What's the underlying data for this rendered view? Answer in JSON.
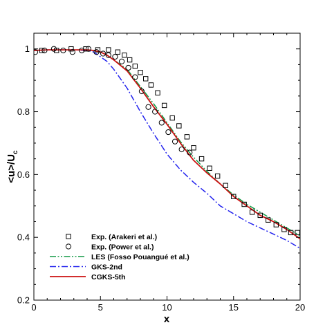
{
  "chart_data": {
    "type": "line",
    "xlabel": "x",
    "ylabel": "<u>/U",
    "ylabel_subscript": "c",
    "xlim": [
      0,
      20
    ],
    "ylim": [
      0.2,
      1.05
    ],
    "xticks": [
      0,
      5,
      10,
      15,
      20
    ],
    "yticks": [
      0.2,
      0.4,
      0.6,
      0.8,
      1.0
    ],
    "xtick_labels": [
      "0",
      "5",
      "10",
      "15",
      "20"
    ],
    "ytick_labels": [
      "0.2",
      "0.4",
      "0.6",
      "0.8",
      "1"
    ],
    "grid": false,
    "legend_position": "bottom-left",
    "series": [
      {
        "name": "Exp. (Arakeri et al.)",
        "kind": "marker",
        "marker": "square",
        "color": "#000000",
        "x": [
          0.6,
          1.7,
          2.8,
          3.9,
          4.8,
          5.6,
          6.3,
          6.8,
          7.2,
          7.6,
          8.0,
          8.4,
          8.8,
          9.3,
          9.8,
          10.4,
          10.9,
          11.5,
          12.0,
          12.6,
          13.2,
          13.8,
          14.4,
          15.0,
          15.8,
          16.4,
          17.0,
          17.6,
          18.2,
          18.8,
          19.3,
          19.8
        ],
        "y": [
          0.995,
          0.995,
          1.0,
          1.0,
          0.997,
          0.997,
          0.99,
          0.98,
          0.965,
          0.945,
          0.925,
          0.905,
          0.885,
          0.86,
          0.82,
          0.78,
          0.755,
          0.72,
          0.685,
          0.65,
          0.62,
          0.595,
          0.565,
          0.53,
          0.505,
          0.48,
          0.47,
          0.455,
          0.44,
          0.425,
          0.415,
          0.415
        ]
      },
      {
        "name": "Exp. (Power et al.)",
        "kind": "marker",
        "marker": "circle",
        "color": "#000000",
        "x": [
          0.1,
          0.8,
          1.5,
          2.2,
          2.9,
          3.6,
          4.1,
          4.7,
          5.2,
          5.6,
          6.1,
          6.6,
          7.1,
          7.6,
          8.1,
          8.6,
          9.1,
          9.6,
          10.1,
          10.6,
          11.1,
          11.7
        ],
        "y": [
          0.99,
          0.995,
          1.0,
          0.995,
          0.99,
          0.995,
          1.0,
          0.99,
          0.985,
          0.98,
          0.975,
          0.96,
          0.94,
          0.91,
          0.865,
          0.815,
          0.8,
          0.765,
          0.735,
          0.705,
          0.68,
          0.67
        ]
      },
      {
        "name": "LES (Fosso Pouangué et al.)",
        "kind": "line",
        "dash": "dash-dot-dot",
        "color": "#119945",
        "x": [
          0,
          1,
          2,
          3,
          4,
          4.5,
          5,
          5.5,
          6,
          7,
          8,
          9,
          10,
          11,
          12,
          13,
          14,
          15,
          16,
          17,
          18,
          19,
          20
        ],
        "y": [
          0.995,
          0.997,
          0.997,
          0.997,
          0.997,
          0.995,
          0.99,
          0.98,
          0.965,
          0.935,
          0.88,
          0.825,
          0.765,
          0.705,
          0.655,
          0.61,
          0.57,
          0.535,
          0.505,
          0.48,
          0.455,
          0.43,
          0.405
        ]
      },
      {
        "name": "GKS-2nd",
        "kind": "line",
        "dash": "dash-dot",
        "color": "#2222ee",
        "x": [
          0,
          1,
          2,
          3,
          4,
          4.5,
          5,
          5.5,
          6,
          7,
          8,
          9,
          10,
          11,
          12,
          13,
          14,
          15,
          16,
          17,
          18,
          19,
          20
        ],
        "y": [
          0.995,
          0.997,
          0.997,
          0.997,
          0.995,
          0.99,
          0.975,
          0.96,
          0.935,
          0.875,
          0.8,
          0.73,
          0.665,
          0.615,
          0.575,
          0.54,
          0.5,
          0.475,
          0.45,
          0.43,
          0.41,
          0.39,
          0.365
        ]
      },
      {
        "name": "CGKS-5th",
        "kind": "line",
        "dash": "solid",
        "color": "#cc1111",
        "x": [
          0,
          1,
          2,
          3,
          4,
          4.5,
          5,
          5.5,
          6,
          7,
          8,
          9,
          10,
          11,
          12,
          13,
          14,
          15,
          16,
          17,
          18,
          19,
          20
        ],
        "y": [
          0.995,
          0.997,
          0.997,
          0.997,
          0.997,
          0.995,
          0.99,
          0.98,
          0.965,
          0.93,
          0.875,
          0.815,
          0.76,
          0.7,
          0.645,
          0.605,
          0.57,
          0.53,
          0.5,
          0.47,
          0.45,
          0.425,
          0.395
        ]
      }
    ]
  }
}
